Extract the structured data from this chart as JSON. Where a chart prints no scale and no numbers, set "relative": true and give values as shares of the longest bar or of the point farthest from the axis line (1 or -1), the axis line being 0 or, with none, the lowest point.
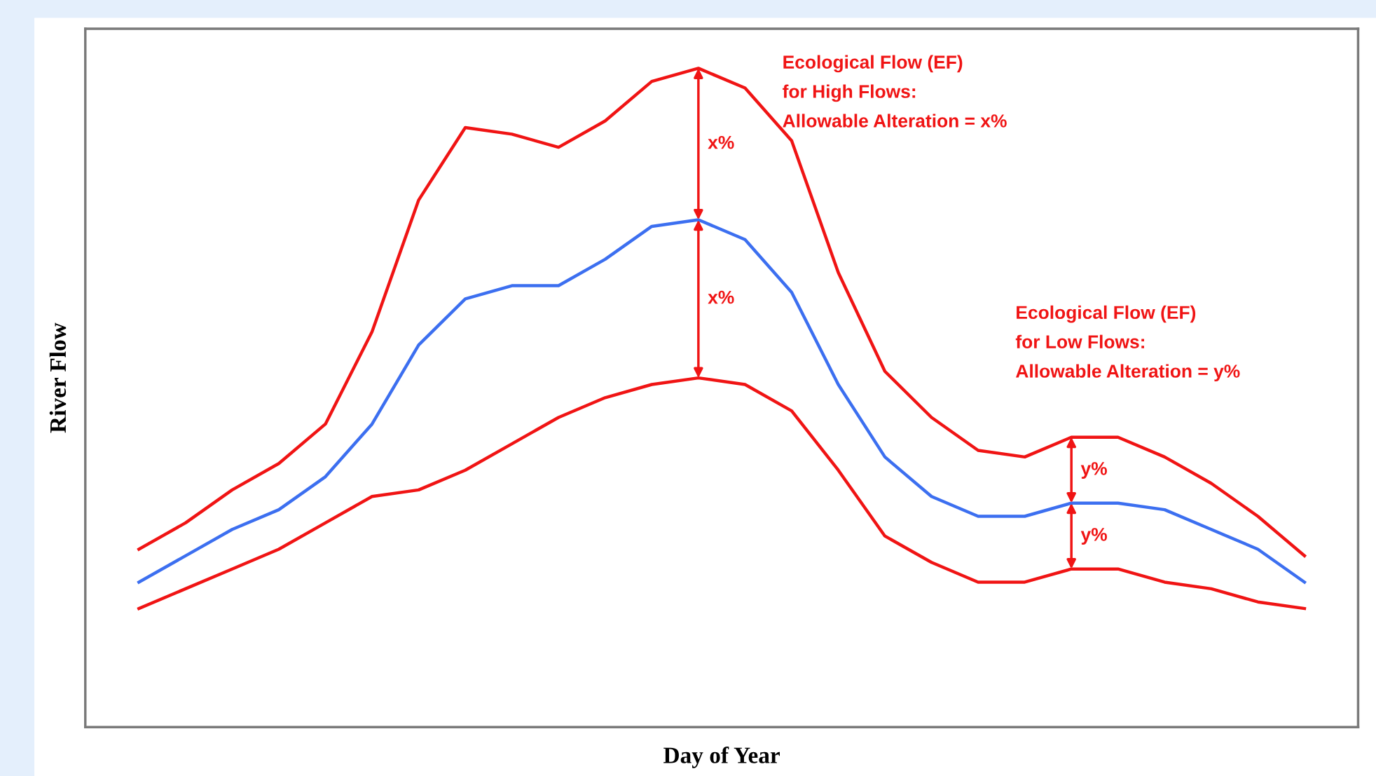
{
  "chart_data": {
    "type": "line",
    "relative": true,
    "xlabel": "Day of Year",
    "ylabel": "River Flow",
    "categories": [
      null,
      null,
      null,
      null,
      null,
      null,
      null,
      null,
      null,
      null,
      null,
      null,
      null,
      null,
      null,
      null,
      null,
      null,
      null,
      null,
      null,
      null,
      null,
      null,
      null,
      null
    ],
    "series": [
      {
        "color": "#f01414",
        "values": [
          0.27,
          0.31,
          0.36,
          0.4,
          0.46,
          0.6,
          0.8,
          0.91,
          0.9,
          0.88,
          0.92,
          0.98,
          1.0,
          0.97,
          0.89,
          0.69,
          0.54,
          0.47,
          0.42,
          0.41,
          0.44,
          0.44,
          0.41,
          0.37,
          0.32,
          0.26
        ]
      },
      {
        "color": "#3c6ff0",
        "values": [
          0.22,
          0.26,
          0.3,
          0.33,
          0.38,
          0.46,
          0.58,
          0.65,
          0.67,
          0.67,
          0.71,
          0.76,
          0.77,
          0.74,
          0.66,
          0.52,
          0.41,
          0.35,
          0.32,
          0.32,
          0.34,
          0.34,
          0.33,
          0.3,
          0.27,
          0.22
        ]
      },
      {
        "color": "#f01414",
        "values": [
          0.18,
          0.21,
          0.24,
          0.27,
          0.31,
          0.35,
          0.36,
          0.39,
          0.43,
          0.47,
          0.5,
          0.52,
          0.53,
          0.52,
          0.48,
          0.39,
          0.29,
          0.25,
          0.22,
          0.22,
          0.24,
          0.24,
          0.22,
          0.21,
          0.19,
          0.18
        ]
      }
    ],
    "annotations": [
      "Ecological Flow (EF)\nfor High Flows:\nAllowable Alteration = x%",
      "Ecological Flow (EF)\nfor Low Flows:\nAllowable Alteration = y%",
      "x%",
      "x%",
      "y%",
      "y%"
    ]
  }
}
